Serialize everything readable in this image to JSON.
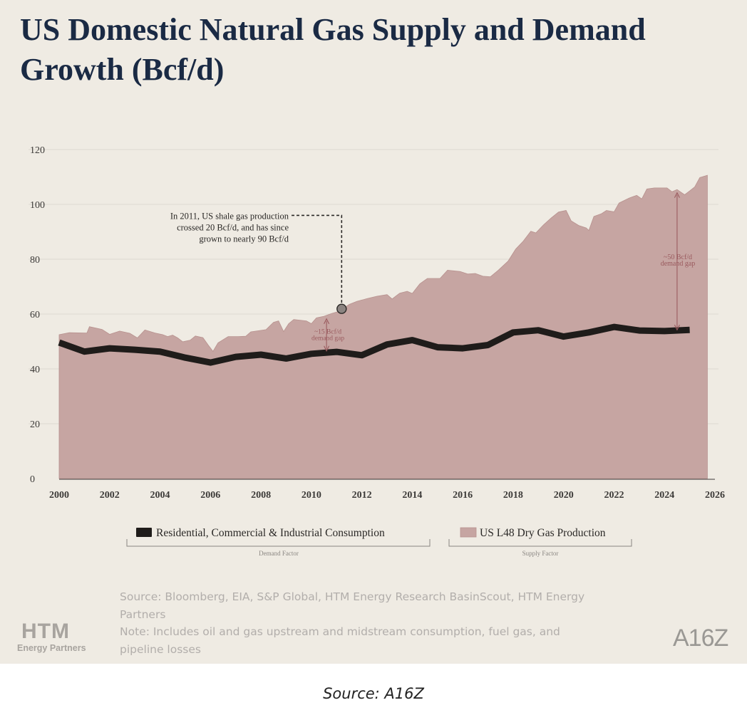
{
  "title": "US Domestic Natural Gas Supply and Demand Growth (Bcf/d)",
  "chart_data": {
    "type": "area",
    "title": "US Domestic Natural Gas Supply and Demand Growth (Bcf/d)",
    "xlabel": "",
    "ylabel": "",
    "xlim": [
      2000,
      2026
    ],
    "ylim": [
      0,
      120
    ],
    "x_ticks": [
      "2000",
      "2002",
      "2004",
      "2006",
      "2008",
      "2010",
      "2012",
      "2014",
      "2016",
      "2018",
      "2020",
      "2022",
      "2024",
      "2026"
    ],
    "y_ticks": [
      "0",
      "20",
      "40",
      "60",
      "80",
      "100",
      "120"
    ],
    "grid": true,
    "legend_placement": "bottom",
    "series": [
      {
        "name": "US L48 Dry Gas Production",
        "type": "area",
        "color": "#c6a5a2",
        "points": [
          [
            2000,
            52.5
          ],
          [
            2000.4,
            53.2
          ],
          [
            2001.1,
            53.1
          ],
          [
            2001.2,
            55.4
          ],
          [
            2001.7,
            54.4
          ],
          [
            2002.0,
            52.6
          ],
          [
            2002.4,
            53.8
          ],
          [
            2002.8,
            53.0
          ],
          [
            2003.1,
            51.3
          ],
          [
            2003.4,
            54.2
          ],
          [
            2003.8,
            53.1
          ],
          [
            2004.1,
            52.5
          ],
          [
            2004.3,
            51.8
          ],
          [
            2004.5,
            52.3
          ],
          [
            2004.7,
            51.3
          ],
          [
            2004.9,
            49.9
          ],
          [
            2005.2,
            50.5
          ],
          [
            2005.4,
            52.0
          ],
          [
            2005.7,
            51.4
          ],
          [
            2005.9,
            48.8
          ],
          [
            2006.1,
            46.4
          ],
          [
            2006.3,
            49.5
          ],
          [
            2006.7,
            51.8
          ],
          [
            2007.1,
            51.8
          ],
          [
            2007.4,
            51.9
          ],
          [
            2007.6,
            53.5
          ],
          [
            2008.2,
            54.3
          ],
          [
            2008.5,
            57.0
          ],
          [
            2008.7,
            57.5
          ],
          [
            2008.9,
            53.6
          ],
          [
            2009.1,
            56.5
          ],
          [
            2009.3,
            58.0
          ],
          [
            2009.8,
            57.5
          ],
          [
            2010.0,
            56.5
          ],
          [
            2010.2,
            58.6
          ],
          [
            2010.5,
            59.2
          ],
          [
            2010.8,
            60.2
          ],
          [
            2011.1,
            61.0
          ],
          [
            2011.5,
            63.5
          ],
          [
            2011.8,
            64.6
          ],
          [
            2012.2,
            65.6
          ],
          [
            2012.6,
            66.5
          ],
          [
            2013.0,
            67.1
          ],
          [
            2013.2,
            65.5
          ],
          [
            2013.5,
            67.6
          ],
          [
            2013.8,
            68.3
          ],
          [
            2014.0,
            67.5
          ],
          [
            2014.3,
            71.0
          ],
          [
            2014.6,
            73.0
          ],
          [
            2015.1,
            73.0
          ],
          [
            2015.4,
            76.0
          ],
          [
            2015.9,
            75.5
          ],
          [
            2016.2,
            74.6
          ],
          [
            2016.5,
            74.8
          ],
          [
            2016.8,
            73.8
          ],
          [
            2017.1,
            73.6
          ],
          [
            2017.4,
            75.9
          ],
          [
            2017.8,
            79.3
          ],
          [
            2018.1,
            83.7
          ],
          [
            2018.4,
            86.6
          ],
          [
            2018.7,
            90.2
          ],
          [
            2018.9,
            89.6
          ],
          [
            2019.2,
            92.5
          ],
          [
            2019.5,
            95.0
          ],
          [
            2019.8,
            97.2
          ],
          [
            2020.1,
            97.8
          ],
          [
            2020.3,
            94.0
          ],
          [
            2020.6,
            92.3
          ],
          [
            2020.9,
            91.4
          ],
          [
            2021.0,
            90.5
          ],
          [
            2021.2,
            95.6
          ],
          [
            2021.5,
            96.6
          ],
          [
            2021.7,
            97.8
          ],
          [
            2022.0,
            97.3
          ],
          [
            2022.2,
            100.5
          ],
          [
            2022.6,
            102.3
          ],
          [
            2022.9,
            103.3
          ],
          [
            2023.1,
            102.0
          ],
          [
            2023.3,
            105.6
          ],
          [
            2023.6,
            106.0
          ],
          [
            2024.1,
            106.0
          ],
          [
            2024.3,
            104.6
          ],
          [
            2024.5,
            105.4
          ],
          [
            2024.8,
            103.5
          ],
          [
            2025.0,
            104.9
          ],
          [
            2025.2,
            106.4
          ],
          [
            2025.4,
            109.8
          ],
          [
            2025.7,
            110.6
          ]
        ]
      },
      {
        "name": "Residential, Commercial & Industrial Consumption",
        "type": "line",
        "color": "#1f1c1a",
        "points": [
          [
            2000,
            49.6
          ],
          [
            2001,
            46.3
          ],
          [
            2002,
            47.5
          ],
          [
            2003,
            47.0
          ],
          [
            2004,
            46.3
          ],
          [
            2005,
            44.1
          ],
          [
            2006,
            42.3
          ],
          [
            2007,
            44.4
          ],
          [
            2008,
            45.2
          ],
          [
            2009,
            43.8
          ],
          [
            2010,
            45.5
          ],
          [
            2011,
            46.2
          ],
          [
            2012,
            45.0
          ],
          [
            2013,
            48.9
          ],
          [
            2014,
            50.5
          ],
          [
            2015,
            47.9
          ],
          [
            2016,
            47.5
          ],
          [
            2017,
            48.7
          ],
          [
            2018,
            53.3
          ],
          [
            2019,
            54.1
          ],
          [
            2020,
            51.8
          ],
          [
            2021,
            53.3
          ],
          [
            2022,
            55.3
          ],
          [
            2023,
            54.0
          ],
          [
            2024,
            53.8
          ],
          [
            2025,
            54.2
          ]
        ]
      }
    ],
    "legend": [
      {
        "label": "Residential, Commercial & Industrial Consumption",
        "group": "Demand Factor"
      },
      {
        "label": "US L48 Dry Gas Production",
        "group": "Supply Factor"
      }
    ],
    "annotations": {
      "shale_note": {
        "lines": [
          "In 2011, US shale gas production",
          "crossed 20 Bcf/d, and has since",
          "grown to nearly 90 Bcf/d"
        ],
        "point": [
          2011.2,
          61.9
        ],
        "elbow_y": 96
      },
      "gap_2010": {
        "lines": [
          "~15 Bcf/d",
          "demand gap"
        ],
        "x": 2010.6,
        "y_top": 58.5,
        "y_bottom": 46.3
      },
      "gap_2025": {
        "lines": [
          "~50 Bcf/d",
          "demand gap"
        ],
        "x": 2024.5,
        "y_top": 104.5,
        "y_bottom": 54.0
      }
    }
  },
  "footer": {
    "source": "Source: Bloomberg, EIA, S&P Global, HTM Energy Research BasinScout, HTM Energy Partners",
    "note": "Note: Includes oil and gas upstream and midstream consumption, fuel gas, and pipeline losses"
  },
  "logos": {
    "htm_big": "HTM",
    "htm_small": "Energy Partners",
    "a16z": "A16Z"
  },
  "caption": "Source: A16Z"
}
